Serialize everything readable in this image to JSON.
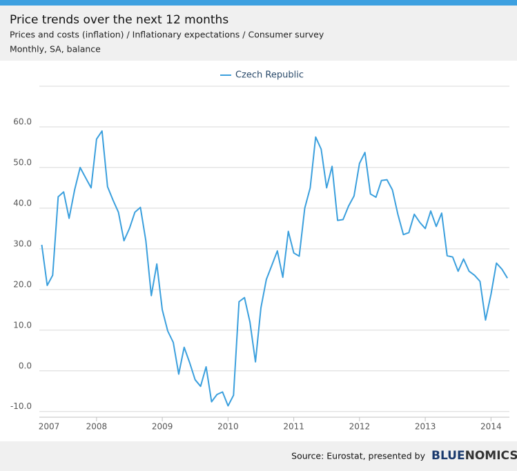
{
  "chart_data": {
    "type": "line",
    "title": "Price trends over the next 12 months",
    "subtitle": "Prices and costs (inflation) / Inflationary expectations / Consumer survey",
    "subtitle2": "Monthly, SA, balance",
    "source": "Source: Eurostat, presented by",
    "brand": [
      "BLUE",
      "NOMICS"
    ],
    "legend": "top",
    "grid": true,
    "x": [
      2007.167,
      2007.25,
      2007.333,
      2007.417,
      2007.5,
      2007.583,
      2007.667,
      2007.75,
      2007.833,
      2007.917,
      2008.0,
      2008.083,
      2008.167,
      2008.25,
      2008.333,
      2008.417,
      2008.5,
      2008.583,
      2008.667,
      2008.75,
      2008.833,
      2008.917,
      2009.0,
      2009.083,
      2009.167,
      2009.25,
      2009.333,
      2009.417,
      2009.5,
      2009.583,
      2009.667,
      2009.75,
      2009.833,
      2009.917,
      2010.0,
      2010.083,
      2010.167,
      2010.25,
      2010.333,
      2010.417,
      2010.5,
      2010.583,
      2010.667,
      2010.75,
      2010.833,
      2010.917,
      2011.0,
      2011.083,
      2011.167,
      2011.25,
      2011.333,
      2011.417,
      2011.5,
      2011.583,
      2011.667,
      2011.75,
      2011.833,
      2011.917,
      2012.0,
      2012.083,
      2012.167,
      2012.25,
      2012.333,
      2012.417,
      2012.5,
      2012.583,
      2012.667,
      2012.75,
      2012.833,
      2012.917,
      2013.0,
      2013.083,
      2013.167,
      2013.25,
      2013.333,
      2013.417,
      2013.5,
      2013.583,
      2013.667,
      2013.75,
      2013.833,
      2013.917,
      2014.0,
      2014.083,
      2014.167,
      2014.25
    ],
    "series": [
      {
        "name": "Czech Republic",
        "color": "#3a9fdd",
        "values": [
          31,
          21,
          23.5,
          42.8,
          44,
          37.5,
          44.5,
          50,
          47.5,
          45,
          57,
          59,
          45.3,
          42,
          39,
          32,
          35,
          39,
          40.2,
          32,
          18.5,
          26.3,
          15,
          9.8,
          7,
          -0.8,
          5.8,
          2,
          -2.2,
          -3.8,
          1,
          -7.6,
          -5.8,
          -5.2,
          -8.6,
          -6,
          17,
          18,
          12,
          2.2,
          15.5,
          22.5,
          26,
          29.5,
          23,
          34.3,
          29,
          28.2,
          40,
          45,
          57.5,
          54.5,
          45,
          50.3,
          37,
          37.2,
          40.5,
          43,
          51,
          53.7,
          43.5,
          42.7,
          46.8,
          47,
          44.5,
          38.5,
          33.5,
          34,
          38.5,
          36.5,
          35,
          39.3,
          35.5,
          38.8,
          28.3,
          28,
          24.5,
          27.5,
          24.5,
          23.5,
          22,
          12.5,
          18.8,
          26.5,
          25,
          22.8
        ]
      }
    ],
    "xlim": [
      2007.13,
      2014.28
    ],
    "xticks": [
      2007,
      2008,
      2009,
      2010,
      2011,
      2012,
      2013,
      2014
    ],
    "ylim": [
      -11.4,
      70
    ],
    "yticks": [
      {
        "value": -10,
        "label": "-10.0"
      },
      {
        "value": 0,
        "label": "0.0"
      },
      {
        "value": 10,
        "label": "10.0"
      },
      {
        "value": 20,
        "label": "20.0"
      },
      {
        "value": 30,
        "label": "30.0"
      },
      {
        "value": 40,
        "label": "40.0"
      },
      {
        "value": 50,
        "label": "50.0"
      },
      {
        "value": 60,
        "label": "60.0"
      },
      70
    ]
  }
}
